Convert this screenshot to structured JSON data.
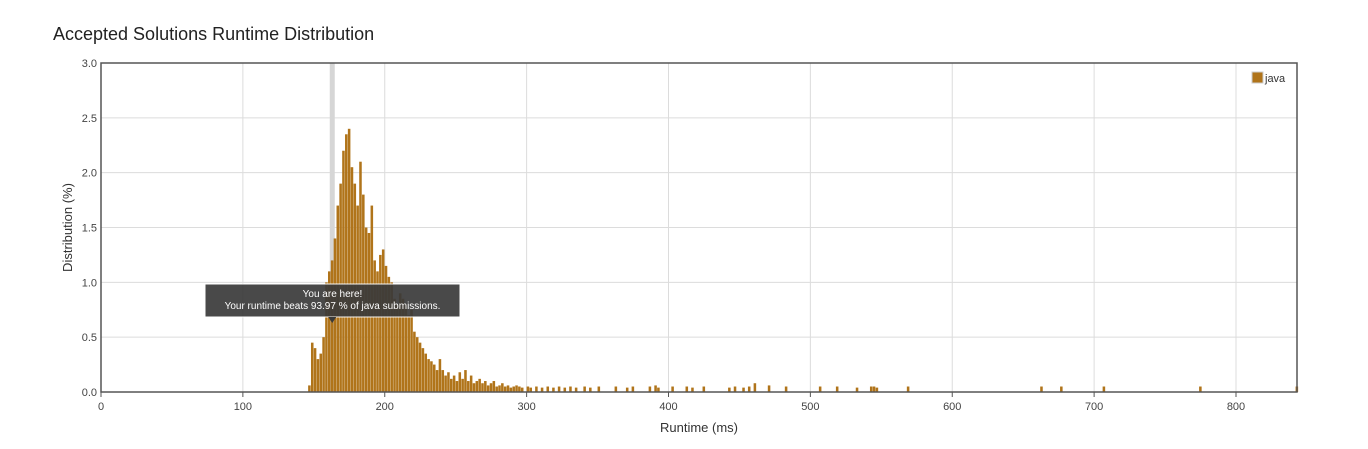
{
  "chart_data": {
    "type": "bar",
    "title": "Accepted Solutions Runtime Distribution",
    "xlabel": "Runtime (ms)",
    "ylabel": "Distribution (%)",
    "xlim": [
      0,
      843
    ],
    "ylim": [
      0,
      3.0
    ],
    "xticks": [
      "0",
      "100",
      "200",
      "300",
      "400",
      "500",
      "600",
      "700",
      "800"
    ],
    "xtick_values": [
      0,
      100,
      200,
      300,
      400,
      500,
      600,
      700,
      800
    ],
    "yticks": [
      "0.0",
      "0.5",
      "1.0",
      "1.5",
      "2.0",
      "2.5",
      "3.0"
    ],
    "ytick_values": [
      0,
      0.5,
      1.0,
      1.5,
      2.0,
      2.5,
      3.0
    ],
    "grid": true,
    "legend_position": "top-right",
    "series": [
      {
        "name": "java",
        "color": "#b0741a",
        "bin_width": 2,
        "x": [
          147,
          149,
          151,
          153,
          155,
          157,
          159,
          161,
          163,
          165,
          167,
          169,
          171,
          173,
          175,
          177,
          179,
          181,
          183,
          185,
          187,
          189,
          191,
          193,
          195,
          197,
          199,
          201,
          203,
          205,
          207,
          209,
          211,
          213,
          215,
          217,
          219,
          221,
          223,
          225,
          227,
          229,
          231,
          233,
          235,
          237,
          239,
          241,
          243,
          245,
          247,
          249,
          251,
          253,
          255,
          257,
          259,
          261,
          263,
          265,
          267,
          269,
          271,
          273,
          275,
          277,
          279,
          281,
          283,
          285,
          287,
          289,
          291,
          293,
          295,
          297,
          301,
          303,
          307,
          311,
          315,
          319,
          323,
          327,
          331,
          335,
          341,
          345,
          351,
          363,
          371,
          375,
          387,
          391,
          393,
          403,
          413,
          417,
          425,
          443,
          447,
          453,
          457,
          461,
          471,
          483,
          507,
          519,
          533,
          543,
          545,
          547,
          569,
          663,
          677,
          707,
          775,
          843
        ],
        "values": [
          0.06,
          0.45,
          0.4,
          0.3,
          0.35,
          0.5,
          1.0,
          1.1,
          1.2,
          1.4,
          1.7,
          1.9,
          2.2,
          2.35,
          2.4,
          2.05,
          1.9,
          1.7,
          2.1,
          1.8,
          1.5,
          1.45,
          1.7,
          1.2,
          1.1,
          1.25,
          1.3,
          1.15,
          1.05,
          1.0,
          0.85,
          0.8,
          0.9,
          0.85,
          0.8,
          0.7,
          0.75,
          0.55,
          0.5,
          0.45,
          0.4,
          0.35,
          0.3,
          0.28,
          0.25,
          0.2,
          0.3,
          0.2,
          0.15,
          0.18,
          0.12,
          0.15,
          0.1,
          0.18,
          0.12,
          0.2,
          0.1,
          0.15,
          0.08,
          0.1,
          0.12,
          0.08,
          0.1,
          0.06,
          0.08,
          0.1,
          0.05,
          0.06,
          0.08,
          0.05,
          0.06,
          0.04,
          0.05,
          0.06,
          0.05,
          0.04,
          0.05,
          0.04,
          0.05,
          0.04,
          0.05,
          0.04,
          0.05,
          0.04,
          0.05,
          0.04,
          0.05,
          0.04,
          0.05,
          0.05,
          0.04,
          0.05,
          0.05,
          0.06,
          0.04,
          0.05,
          0.05,
          0.04,
          0.05,
          0.04,
          0.05,
          0.04,
          0.05,
          0.08,
          0.06,
          0.05,
          0.05,
          0.05,
          0.04,
          0.05,
          0.05,
          0.04,
          0.05,
          0.05,
          0.05,
          0.05,
          0.05,
          0.05
        ]
      }
    ],
    "highlight_x": 163,
    "tooltip": {
      "line1": "You are here!",
      "line2": "Your runtime beats 93.97 % of java submissions."
    }
  }
}
